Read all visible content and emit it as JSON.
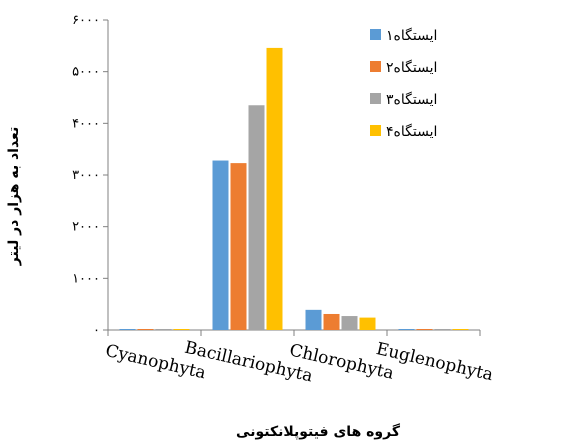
{
  "chart_data": {
    "type": "bar",
    "title": "",
    "xlabel": "گروه های فیتوپلانکتونی",
    "ylabel": "تعداد به هزار در لیتر",
    "ylim": [
      0,
      6000
    ],
    "yticks": [
      0,
      1000,
      2000,
      3000,
      4000,
      5000,
      6000
    ],
    "ytick_labels": [
      "۰",
      "۱۰۰۰",
      "۲۰۰۰",
      "۳۰۰۰",
      "۴۰۰۰",
      "۵۰۰۰",
      "۶۰۰۰"
    ],
    "categories": [
      "Cyanophyta",
      "Bacillariophyta",
      "Chlorophyta",
      "Euglenophyta"
    ],
    "series": [
      {
        "name": "ایستگاه۱",
        "color": "#5B9BD5",
        "values": [
          10,
          3280,
          390,
          10
        ]
      },
      {
        "name": "ایستگاه۲",
        "color": "#ED7D31",
        "values": [
          10,
          3230,
          310,
          10
        ]
      },
      {
        "name": "ایستگاه۳",
        "color": "#A5A5A5",
        "values": [
          10,
          4350,
          270,
          10
        ]
      },
      {
        "name": "ایستگاه۴",
        "color": "#FFC000",
        "values": [
          10,
          5460,
          240,
          10
        ]
      }
    ],
    "grid": false,
    "legend_position": "top-right"
  }
}
